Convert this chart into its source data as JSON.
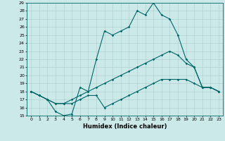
{
  "title": "",
  "xlabel": "Humidex (Indice chaleur)",
  "ylabel": "",
  "xlim": [
    -0.5,
    23.5
  ],
  "ylim": [
    15,
    29
  ],
  "yticks": [
    15,
    16,
    17,
    18,
    19,
    20,
    21,
    22,
    23,
    24,
    25,
    26,
    27,
    28,
    29
  ],
  "xticks": [
    0,
    1,
    2,
    3,
    4,
    5,
    6,
    7,
    8,
    9,
    10,
    11,
    12,
    13,
    14,
    15,
    16,
    17,
    18,
    19,
    20,
    21,
    22,
    23
  ],
  "bg_color": "#cce9e9",
  "line_color": "#006666",
  "line1_x": [
    0,
    1,
    2,
    3,
    4,
    5,
    6,
    7,
    8,
    9,
    10,
    11,
    12,
    13,
    14,
    15,
    16,
    17,
    18,
    19,
    20,
    21,
    22,
    23
  ],
  "line1_y": [
    18.0,
    17.5,
    17.0,
    15.5,
    15.0,
    15.2,
    18.5,
    18.0,
    22.0,
    25.5,
    25.0,
    25.5,
    26.0,
    28.0,
    27.5,
    29.0,
    27.5,
    27.0,
    25.0,
    22.0,
    21.0,
    18.5,
    18.5,
    18.0
  ],
  "line2_x": [
    0,
    1,
    2,
    3,
    4,
    5,
    6,
    7,
    8,
    9,
    10,
    11,
    12,
    13,
    14,
    15,
    16,
    17,
    18,
    19,
    20,
    21,
    22,
    23
  ],
  "line2_y": [
    18.0,
    17.5,
    17.0,
    16.5,
    16.5,
    17.0,
    17.5,
    18.0,
    18.5,
    19.0,
    19.5,
    20.0,
    20.5,
    21.0,
    21.5,
    22.0,
    22.5,
    23.0,
    22.5,
    21.5,
    21.0,
    18.5,
    18.5,
    18.0
  ],
  "line3_x": [
    0,
    1,
    2,
    3,
    4,
    5,
    6,
    7,
    8,
    9,
    10,
    11,
    12,
    13,
    14,
    15,
    16,
    17,
    18,
    19,
    20,
    21,
    22,
    23
  ],
  "line3_y": [
    18.0,
    17.5,
    17.0,
    16.5,
    16.5,
    16.5,
    17.0,
    17.5,
    17.5,
    16.0,
    16.5,
    17.0,
    17.5,
    18.0,
    18.5,
    19.0,
    19.5,
    19.5,
    19.5,
    19.5,
    19.0,
    18.5,
    18.5,
    18.0
  ]
}
